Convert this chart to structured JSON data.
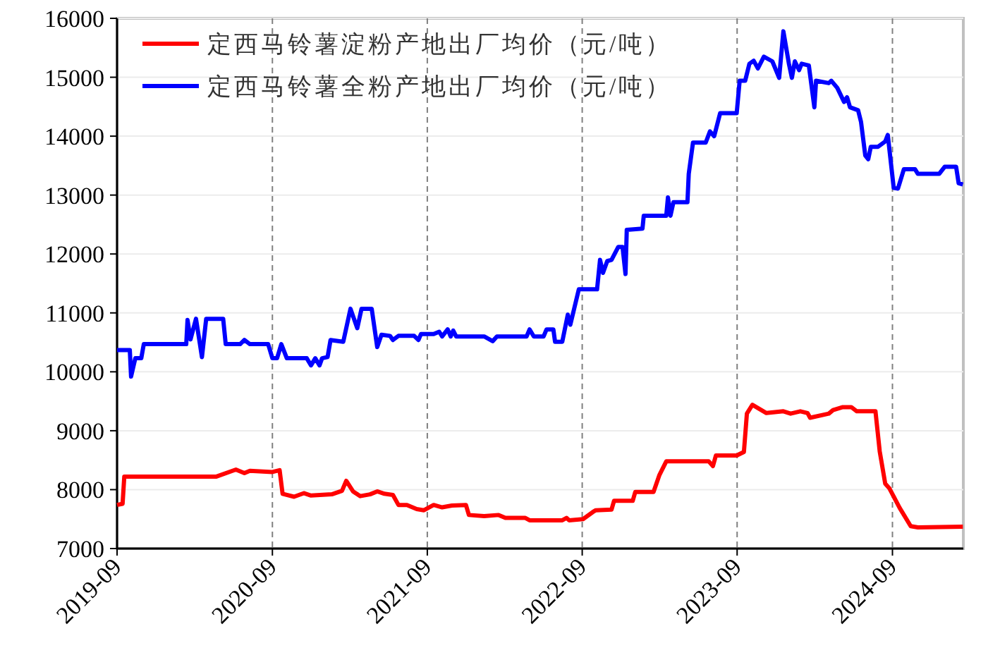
{
  "chart_data": {
    "type": "line",
    "xlim": [
      "2019-09-01",
      "2025-02-15"
    ],
    "ylim": [
      7000,
      16000
    ],
    "xticks": [
      "2019-09",
      "2020-09",
      "2021-09",
      "2022-09",
      "2023-09",
      "2024-09"
    ],
    "yticks": [
      7000,
      8000,
      9000,
      10000,
      11000,
      12000,
      13000,
      14000,
      15000,
      16000
    ],
    "grid": true,
    "legend": "top left",
    "line_style": "solid",
    "series": [
      {
        "name": "定西马铃薯淀粉产地出厂均价（元/吨）",
        "color": "#ff0000",
        "x": [
          "2019-09-01",
          "2019-09-14",
          "2019-09-18",
          "2020-04-21",
          "2020-06-07",
          "2020-06-27",
          "2020-07-10",
          "2020-09-01",
          "2020-09-18",
          "2020-09-25",
          "2020-10-22",
          "2020-11-14",
          "2020-12-01",
          "2021-01-19",
          "2021-02-12",
          "2021-02-22",
          "2021-03-10",
          "2021-03-27",
          "2021-04-19",
          "2021-05-06",
          "2021-05-23",
          "2021-06-12",
          "2021-06-25",
          "2021-07-15",
          "2021-08-07",
          "2021-08-24",
          "2021-09-16",
          "2021-10-06",
          "2021-10-29",
          "2021-12-01",
          "2021-12-08",
          "2022-01-13",
          "2022-02-16",
          "2022-03-04",
          "2022-04-20",
          "2022-04-30",
          "2022-07-16",
          "2022-07-26",
          "2022-08-01",
          "2022-09-03",
          "2022-09-26",
          "2022-10-03",
          "2022-11-09",
          "2022-11-15",
          "2022-12-29",
          "2023-01-04",
          "2023-02-16",
          "2023-03-02",
          "2023-03-18",
          "2023-06-26",
          "2023-07-06",
          "2023-07-13",
          "2023-08-31",
          "2023-09-17",
          "2023-09-24",
          "2023-10-07",
          "2023-11-09",
          "2023-12-19",
          "2024-01-05",
          "2024-01-28",
          "2024-02-14",
          "2024-02-20",
          "2024-04-04",
          "2024-04-14",
          "2024-05-07",
          "2024-05-27",
          "2024-06-09",
          "2024-07-23",
          "2024-08-02",
          "2024-08-15",
          "2024-08-25",
          "2024-09-18",
          "2024-10-14",
          "2024-10-31",
          "2025-02-14"
        ],
        "values": [
          7740,
          7760,
          8220,
          8220,
          8340,
          8280,
          8320,
          8300,
          8330,
          7930,
          7880,
          7940,
          7900,
          7920,
          7980,
          8150,
          7970,
          7890,
          7920,
          7970,
          7930,
          7910,
          7740,
          7740,
          7670,
          7650,
          7740,
          7700,
          7730,
          7740,
          7570,
          7550,
          7570,
          7520,
          7520,
          7480,
          7480,
          7520,
          7480,
          7500,
          7620,
          7650,
          7660,
          7810,
          7810,
          7960,
          7960,
          8250,
          8480,
          8480,
          8400,
          8580,
          8580,
          8640,
          9290,
          9440,
          9300,
          9330,
          9290,
          9330,
          9300,
          9220,
          9290,
          9350,
          9400,
          9400,
          9330,
          9330,
          8650,
          8100,
          8020,
          7690,
          7380,
          7360,
          7370
        ]
      },
      {
        "name": "定西马铃薯全粉产地出厂均价（元/吨）",
        "color": "#0000ff",
        "x": [
          "2019-09-01",
          "2019-10-01",
          "2019-10-04",
          "2019-10-14",
          "2019-10-28",
          "2019-11-03",
          "2020-02-11",
          "2020-02-14",
          "2020-02-21",
          "2020-03-05",
          "2020-03-19",
          "2020-03-29",
          "2020-05-08",
          "2020-05-14",
          "2020-06-17",
          "2020-06-27",
          "2020-07-10",
          "2020-08-22",
          "2020-09-01",
          "2020-09-12",
          "2020-09-22",
          "2020-10-05",
          "2020-11-21",
          "2020-12-01",
          "2020-12-11",
          "2020-12-21",
          "2020-12-27",
          "2021-01-09",
          "2021-01-16",
          "2021-02-15",
          "2021-03-04",
          "2021-03-20",
          "2021-03-30",
          "2021-04-23",
          "2021-05-06",
          "2021-05-16",
          "2021-06-05",
          "2021-06-12",
          "2021-06-25",
          "2021-08-01",
          "2021-08-11",
          "2021-08-17",
          "2021-09-16",
          "2021-09-29",
          "2021-10-06",
          "2021-10-19",
          "2021-10-26",
          "2021-11-01",
          "2021-11-08",
          "2022-01-13",
          "2022-02-02",
          "2022-02-12",
          "2022-04-23",
          "2022-04-30",
          "2022-05-10",
          "2022-06-02",
          "2022-06-09",
          "2022-06-25",
          "2022-06-29",
          "2022-07-16",
          "2022-07-29",
          "2022-08-04",
          "2022-08-24",
          "2022-10-06",
          "2022-10-13",
          "2022-10-20",
          "2022-10-30",
          "2022-11-09",
          "2022-11-25",
          "2022-12-05",
          "2022-12-12",
          "2022-12-15",
          "2023-01-21",
          "2023-01-24",
          "2023-03-18",
          "2023-03-22",
          "2023-03-28",
          "2023-04-04",
          "2023-05-07",
          "2023-05-10",
          "2023-05-20",
          "2023-06-19",
          "2023-06-29",
          "2023-07-09",
          "2023-07-23",
          "2023-08-31",
          "2023-09-07",
          "2023-09-20",
          "2023-09-30",
          "2023-10-10",
          "2023-10-20",
          "2023-11-03",
          "2023-11-23",
          "2023-12-09",
          "2023-12-19",
          "2024-01-01",
          "2024-01-08",
          "2024-01-15",
          "2024-01-25",
          "2024-01-31",
          "2024-02-17",
          "2024-03-01",
          "2024-03-05",
          "2024-04-04",
          "2024-04-10",
          "2024-04-24",
          "2024-05-10",
          "2024-05-17",
          "2024-05-24",
          "2024-06-12",
          "2024-06-19",
          "2024-06-29",
          "2024-07-06",
          "2024-07-12",
          "2024-07-29",
          "2024-08-15",
          "2024-08-21",
          "2024-09-04",
          "2024-09-14",
          "2024-09-28",
          "2024-10-24",
          "2024-10-31",
          "2024-12-20",
          "2025-01-02",
          "2025-01-29",
          "2025-02-04",
          "2025-02-14"
        ],
        "values": [
          10370,
          10370,
          9920,
          10230,
          10230,
          10470,
          10470,
          10880,
          10550,
          10900,
          10250,
          10900,
          10900,
          10470,
          10470,
          10540,
          10470,
          10470,
          10230,
          10230,
          10470,
          10230,
          10230,
          10110,
          10230,
          10110,
          10230,
          10250,
          10540,
          10510,
          11070,
          10740,
          11070,
          11070,
          10420,
          10630,
          10610,
          10540,
          10610,
          10610,
          10540,
          10640,
          10640,
          10680,
          10600,
          10720,
          10600,
          10700,
          10600,
          10600,
          10520,
          10600,
          10600,
          10720,
          10600,
          10600,
          10720,
          10720,
          10510,
          10510,
          10970,
          10800,
          11400,
          11400,
          11900,
          11680,
          11880,
          11900,
          12120,
          12120,
          11660,
          12410,
          12430,
          12650,
          12650,
          12960,
          12650,
          12880,
          12880,
          13360,
          13890,
          13890,
          14080,
          14000,
          14390,
          14390,
          14940,
          14940,
          15230,
          15280,
          15150,
          15350,
          15270,
          14990,
          15780,
          15230,
          14990,
          15270,
          15120,
          15230,
          15200,
          14490,
          14940,
          14900,
          14940,
          14820,
          14580,
          14660,
          14490,
          14440,
          14240,
          13670,
          13610,
          13820,
          13820,
          13910,
          14020,
          13120,
          13110,
          13440,
          13440,
          13360,
          13360,
          13480,
          13480,
          13200,
          13180
        ]
      }
    ]
  }
}
